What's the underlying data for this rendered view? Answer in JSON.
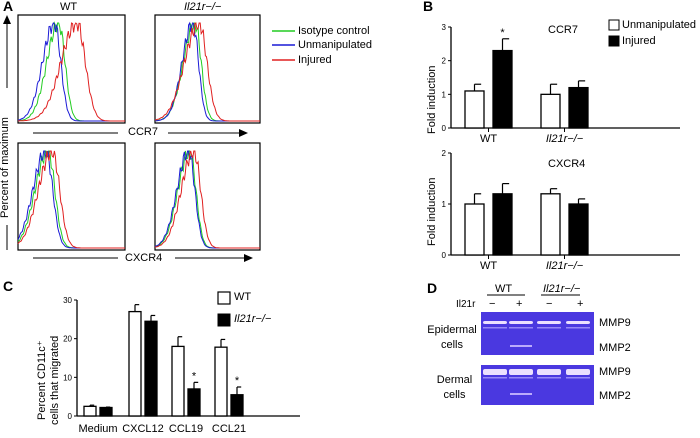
{
  "panels": {
    "a": {
      "label": "A",
      "col_labels": [
        "WT",
        "Il21r−/−"
      ],
      "y_label": "Percent of maximum",
      "row_markers": [
        "CCR7",
        "CXCR4"
      ],
      "legend": [
        {
          "name": "Isotype control",
          "color": "#22cc22"
        },
        {
          "name": "Unmanipulated",
          "color": "#1a1ad6"
        },
        {
          "name": "Injured",
          "color": "#e02020"
        }
      ]
    },
    "b": {
      "label": "B"
    },
    "c": {
      "label": "C"
    },
    "d": {
      "label": "D",
      "group_labels": [
        "WT",
        "Il21r−/−"
      ],
      "row_label": "Il21r",
      "lane_signs": [
        "−",
        "+",
        "−",
        "+"
      ],
      "gels": [
        {
          "name": "Epidermal cells",
          "bands": [
            "MMP9",
            "MMP2"
          ]
        },
        {
          "name": "Dermal cells",
          "bands": [
            "MMP9",
            "MMP2"
          ]
        }
      ],
      "gel_color": "#4a38e0"
    }
  },
  "chart_data": [
    {
      "panel": "A",
      "type": "line",
      "title": "",
      "xlabel": "CCR7 / CXCR4",
      "ylabel": "Percent of maximum",
      "note": "Flow cytometry histograms; columns WT and Il21r−/−, rows CCR7 and CXCR4",
      "series": [
        {
          "name": "Isotype control"
        },
        {
          "name": "Unmanipulated"
        },
        {
          "name": "Injured"
        }
      ]
    },
    {
      "panel": "B",
      "type": "bar",
      "title": "CCR7",
      "ylabel": "Fold induction",
      "ylim": [
        0,
        3
      ],
      "yticks": [
        "0",
        "1",
        "2",
        "3"
      ],
      "categories": [
        "WT",
        "Il21r−/−"
      ],
      "legend": "top-right",
      "series": [
        {
          "name": "Unmanipulated",
          "color": "#ffffff",
          "values": [
            1.1,
            1.0
          ],
          "errors": [
            0.2,
            0.3
          ]
        },
        {
          "name": "Injured",
          "color": "#000000",
          "values": [
            2.3,
            1.2
          ],
          "errors": [
            0.35,
            0.2
          ]
        }
      ],
      "annotations": [
        {
          "text": "*",
          "category": "WT",
          "series": "Injured"
        }
      ]
    },
    {
      "panel": "B",
      "type": "bar",
      "title": "CXCR4",
      "ylabel": "Fold induction",
      "ylim": [
        0,
        2
      ],
      "yticks": [
        "0",
        "1",
        "2"
      ],
      "categories": [
        "WT",
        "Il21r−/−"
      ],
      "series": [
        {
          "name": "Unmanipulated",
          "color": "#ffffff",
          "values": [
            1.0,
            1.2
          ],
          "errors": [
            0.2,
            0.1
          ]
        },
        {
          "name": "Injured",
          "color": "#000000",
          "values": [
            1.2,
            1.0
          ],
          "errors": [
            0.2,
            0.1
          ]
        }
      ],
      "annotations": []
    },
    {
      "panel": "C",
      "type": "bar",
      "title": "",
      "ylabel": "Percent CD11c+ cells that migrated",
      "ylabel_lines": [
        "Percent CD11c⁺",
        "cells that migrated"
      ],
      "ylim": [
        0,
        30
      ],
      "yticks": [
        "0",
        "10",
        "20",
        "30"
      ],
      "categories": [
        "Medium",
        "CXCL12",
        "CCL19",
        "CCL21"
      ],
      "legend": "top-right",
      "series": [
        {
          "name": "WT",
          "color": "#ffffff",
          "values": [
            2.5,
            27,
            18,
            17.8
          ],
          "errors": [
            0.3,
            1.8,
            2.5,
            2.0
          ]
        },
        {
          "name": "Il21r−/−",
          "color": "#000000",
          "values": [
            2.2,
            24.5,
            7,
            5.5
          ],
          "errors": [
            0.1,
            1.5,
            1.7,
            2.0
          ]
        }
      ],
      "annotations": [
        {
          "text": "*",
          "category": "CCL19",
          "series": "Il21r−/−"
        },
        {
          "text": "*",
          "category": "CCL21",
          "series": "Il21r−/−"
        }
      ]
    }
  ]
}
